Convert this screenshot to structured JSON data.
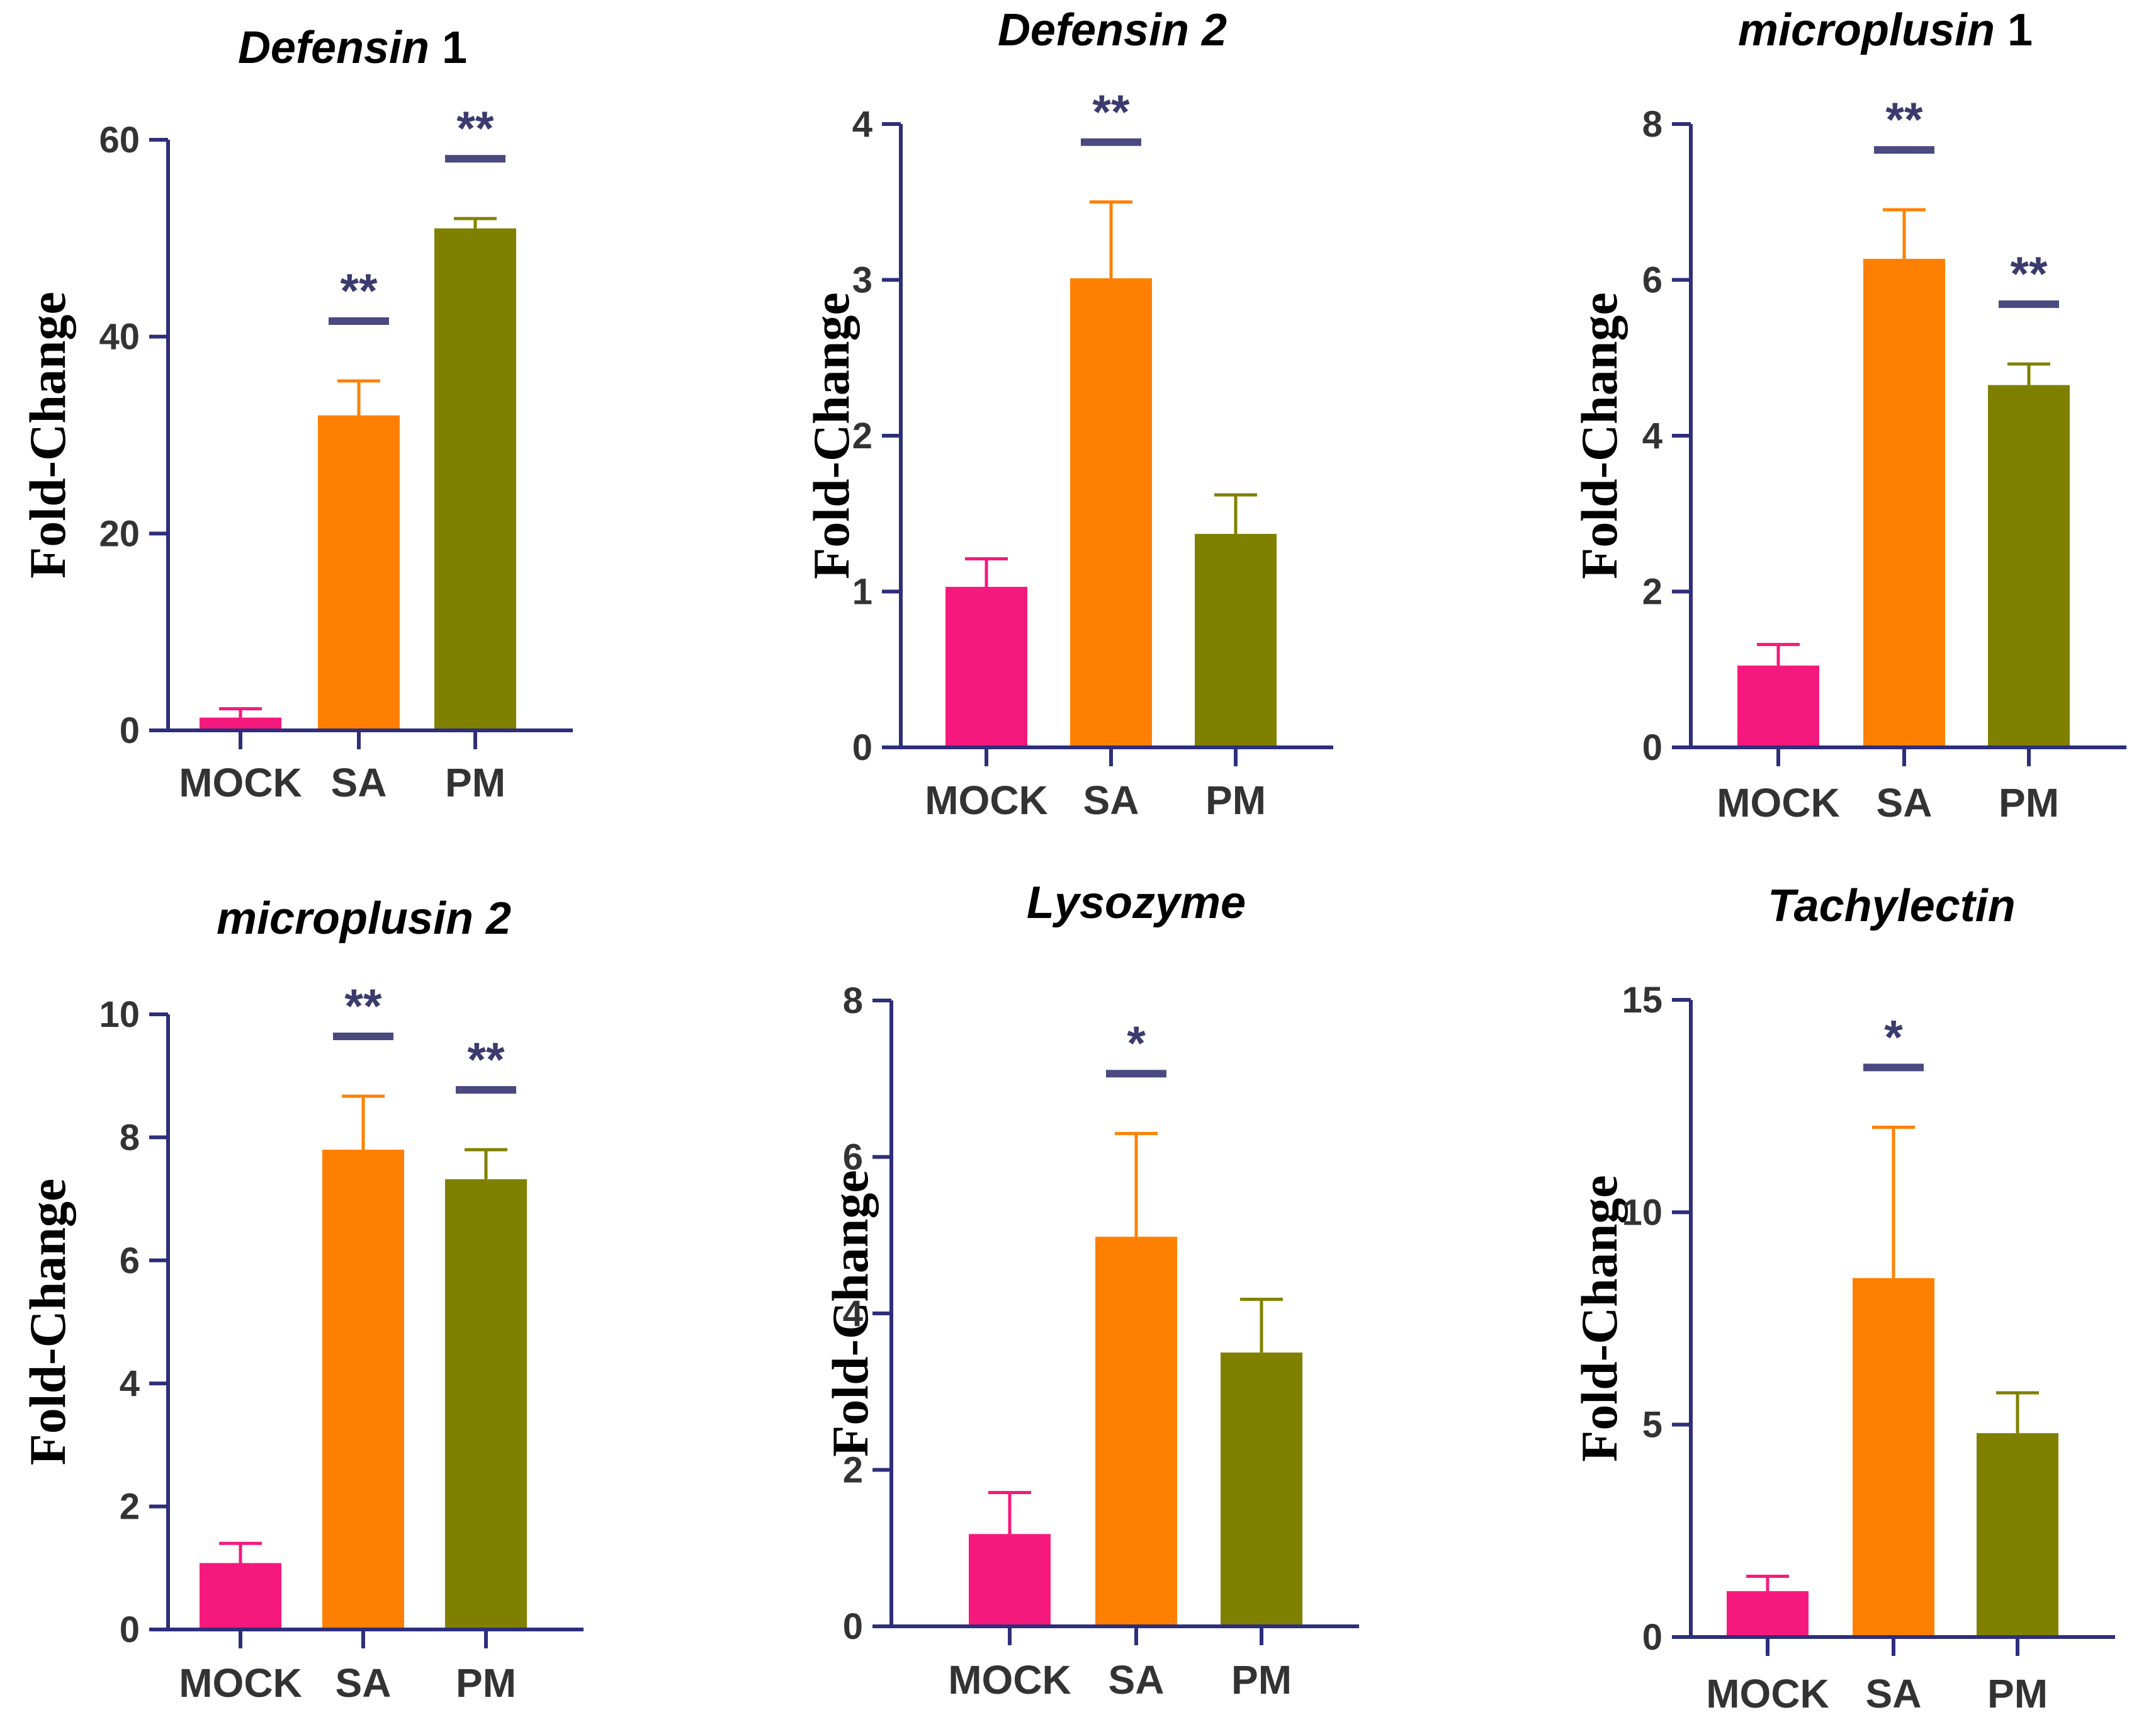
{
  "figure": {
    "colors": {
      "axis": "#2e2e7a",
      "sig_bar": "#4a4a80",
      "text": "#333333",
      "categories": [
        "#f5197d",
        "#ff8000",
        "#808000"
      ]
    },
    "categories": [
      "MOCK",
      "SA",
      "PM"
    ],
    "ylabel": "Fold-Change"
  },
  "chart_data": [
    {
      "type": "bar",
      "title": "Defensin",
      "title_suffix": " 1",
      "ylabel": "Fold-Change",
      "categories": [
        "MOCK",
        "SA",
        "PM"
      ],
      "values": [
        1.3,
        32,
        51
      ],
      "errors": [
        0.9,
        3.5,
        1.0
      ],
      "significance": [
        "",
        "**",
        "**"
      ],
      "ylim": [
        0,
        60
      ],
      "yticks": [
        0,
        20,
        40,
        60
      ],
      "yticklabels": [
        "0",
        "20",
        "40",
        "60"
      ]
    },
    {
      "type": "bar",
      "title": "Defensin 2",
      "title_suffix": "",
      "ylabel": "Fold-Change",
      "categories": [
        "MOCK",
        "SA",
        "PM"
      ],
      "values": [
        1.03,
        3.01,
        1.37
      ],
      "errors": [
        0.18,
        0.49,
        0.25
      ],
      "significance": [
        "",
        "**",
        ""
      ],
      "ylim": [
        0,
        4
      ],
      "yticks": [
        0,
        1,
        2,
        3,
        4
      ],
      "yticklabels": [
        "0",
        "1",
        "2",
        "3",
        "4"
      ]
    },
    {
      "type": "bar",
      "title": "microplusin",
      "title_suffix": " 1",
      "ylabel": "Fold-Change",
      "categories": [
        "MOCK",
        "SA",
        "PM"
      ],
      "values": [
        1.05,
        6.27,
        4.65
      ],
      "errors": [
        0.27,
        0.63,
        0.27
      ],
      "significance": [
        "",
        "**",
        "**"
      ],
      "ylim": [
        0,
        8
      ],
      "yticks": [
        0,
        2,
        4,
        6,
        8
      ],
      "yticklabels": [
        "0",
        "2",
        "4",
        "6",
        "8"
      ]
    },
    {
      "type": "bar",
      "title": "microplusin 2",
      "title_suffix": "",
      "ylabel": "Fold-Change",
      "categories": [
        "MOCK",
        "SA",
        "PM"
      ],
      "values": [
        1.08,
        7.8,
        7.32
      ],
      "errors": [
        0.32,
        0.87,
        0.48
      ],
      "significance": [
        "",
        "**",
        "**"
      ],
      "ylim": [
        0,
        10
      ],
      "yticks": [
        0,
        2,
        4,
        6,
        8,
        10
      ],
      "yticklabels": [
        "0",
        "2",
        "4",
        "6",
        "8",
        "10"
      ]
    },
    {
      "type": "bar",
      "title": "Lysozyme",
      "title_suffix": "",
      "ylabel": "Fold-Change",
      "categories": [
        "MOCK",
        "SA",
        "PM"
      ],
      "values": [
        1.18,
        4.98,
        3.5
      ],
      "errors": [
        0.53,
        1.32,
        0.68
      ],
      "significance": [
        "",
        "*",
        ""
      ],
      "ylim": [
        0,
        8
      ],
      "yticks": [
        0,
        2,
        4,
        6,
        8
      ],
      "yticklabels": [
        "0",
        "2",
        "4",
        "6",
        "8"
      ]
    },
    {
      "type": "bar",
      "title": "Tachylectin",
      "title_suffix": "",
      "ylabel": "Fold-Change",
      "categories": [
        "MOCK",
        "SA",
        "PM"
      ],
      "values": [
        1.08,
        8.45,
        4.8
      ],
      "errors": [
        0.35,
        3.55,
        0.95
      ],
      "significance": [
        "",
        "*",
        ""
      ],
      "ylim": [
        0,
        15
      ],
      "yticks": [
        0,
        5,
        10,
        15
      ],
      "yticklabels": [
        "0",
        "5",
        "10",
        "15"
      ]
    }
  ]
}
